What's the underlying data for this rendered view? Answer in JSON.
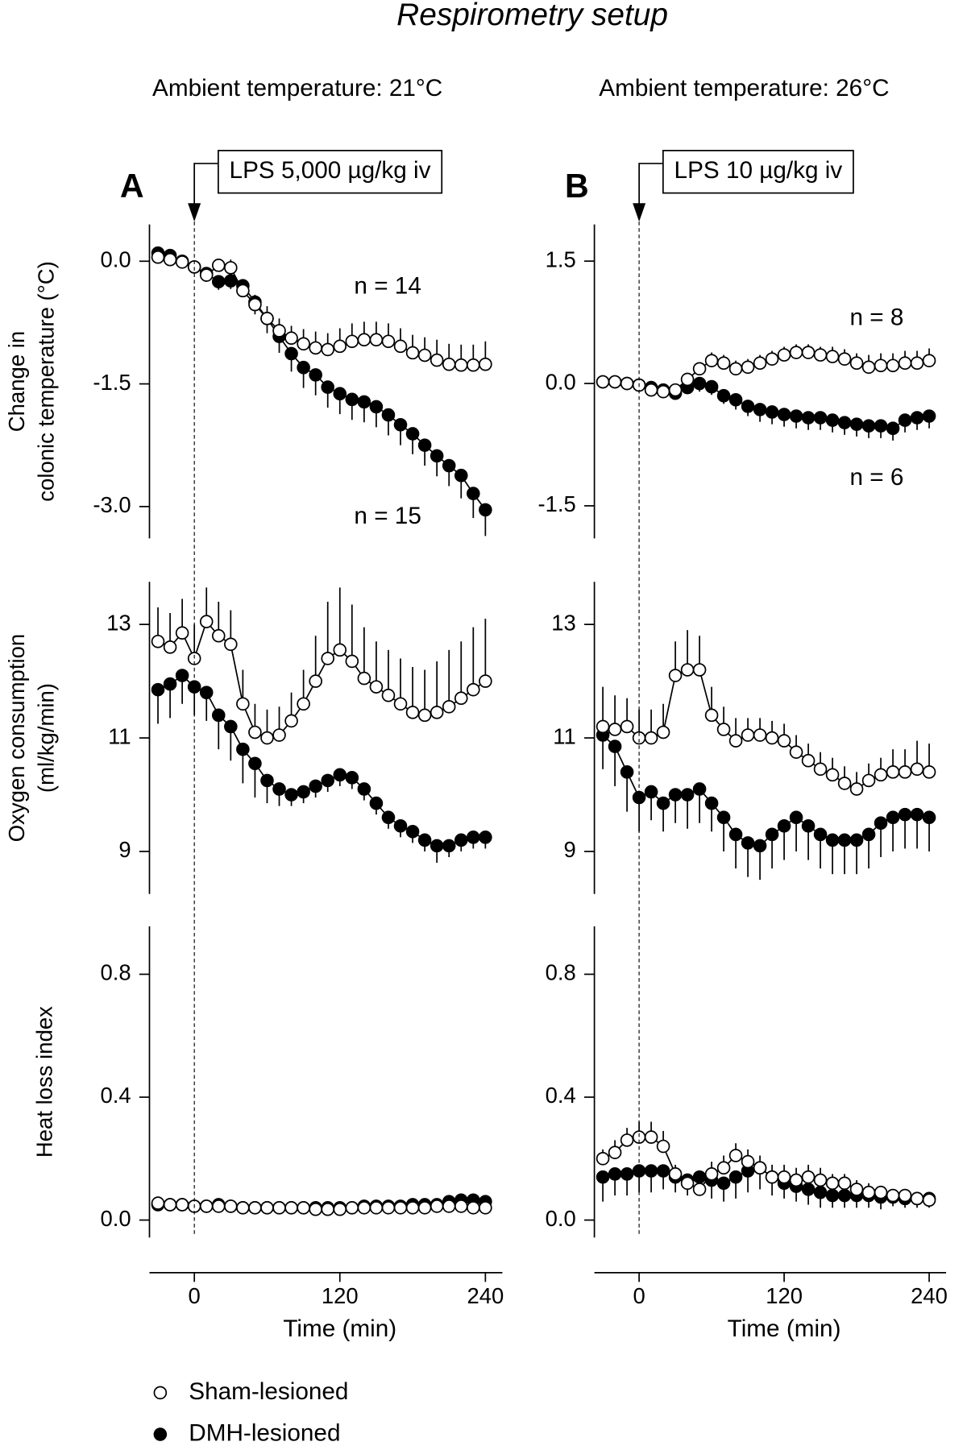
{
  "title": "Respirometry setup",
  "columns": [
    {
      "header": "Ambient temperature: 21°C",
      "letter": "A",
      "injection": "LPS 5,000 µg/kg iv"
    },
    {
      "header": "Ambient temperature: 26°C",
      "letter": "B",
      "injection": "LPS 10 µg/kg iv"
    }
  ],
  "legend": [
    {
      "label": "Sham-lesioned",
      "style": "open"
    },
    {
      "label": "DMH-lesioned",
      "style": "filled"
    }
  ],
  "chart_data": [
    {
      "type": "line",
      "ylabel": [
        "Change in",
        "colonic temperature (°C)"
      ],
      "annotations": [
        "n = 14",
        "n = 15"
      ],
      "x": [
        -30,
        -20,
        -10,
        0,
        10,
        20,
        30,
        40,
        50,
        60,
        70,
        80,
        90,
        100,
        110,
        120,
        130,
        140,
        150,
        160,
        170,
        180,
        190,
        200,
        210,
        220,
        230,
        240
      ],
      "xlim": [
        -37,
        254
      ],
      "ylim": [
        -3.39,
        0.45
      ],
      "yticks": [
        {
          "value": 0,
          "label": "0.0"
        },
        -1.5,
        {
          "value": -3,
          "label": "-3.0"
        }
      ],
      "series": [
        {
          "style": "open",
          "error_direction": "up",
          "values": [
            0.05,
            0.02,
            -0.01,
            -0.07,
            -0.17,
            -0.05,
            -0.08,
            -0.36,
            -0.53,
            -0.7,
            -0.85,
            -0.94,
            -1.01,
            -1.06,
            -1.08,
            -1.04,
            -0.98,
            -0.96,
            -0.96,
            -0.98,
            -1.04,
            -1.12,
            -1.15,
            -1.21,
            -1.26,
            -1.27,
            -1.27,
            -1.26
          ],
          "errors": [
            0.03,
            0.03,
            0.03,
            0.05,
            0.08,
            0.08,
            0.1,
            0.12,
            0.12,
            0.15,
            0.15,
            0.15,
            0.18,
            0.2,
            0.2,
            0.22,
            0.22,
            0.22,
            0.22,
            0.22,
            0.22,
            0.22,
            0.22,
            0.25,
            0.25,
            0.25,
            0.25,
            0.28
          ]
        },
        {
          "style": "filled",
          "error_direction": "down",
          "values": [
            0.1,
            0.07,
            0,
            -0.07,
            -0.15,
            -0.25,
            -0.24,
            -0.3,
            -0.5,
            -0.7,
            -0.92,
            -1.13,
            -1.3,
            -1.39,
            -1.54,
            -1.62,
            -1.69,
            -1.72,
            -1.78,
            -1.88,
            -2,
            -2.11,
            -2.25,
            -2.38,
            -2.5,
            -2.62,
            -2.84,
            -3.04
          ],
          "errors": [
            0.03,
            0.03,
            0.03,
            0.05,
            0.08,
            0.1,
            0.1,
            0.12,
            0.15,
            0.18,
            0.2,
            0.22,
            0.25,
            0.25,
            0.25,
            0.25,
            0.25,
            0.25,
            0.25,
            0.25,
            0.25,
            0.25,
            0.25,
            0.25,
            0.25,
            0.28,
            0.3,
            0.32
          ]
        }
      ]
    },
    {
      "type": "line",
      "annotations": [
        "n = 8",
        "n = 6"
      ],
      "x": [
        -30,
        -20,
        -10,
        0,
        10,
        20,
        30,
        40,
        50,
        60,
        70,
        80,
        90,
        100,
        110,
        120,
        130,
        140,
        150,
        160,
        170,
        180,
        190,
        200,
        210,
        220,
        230,
        240
      ],
      "xlim": [
        -37,
        254
      ],
      "ylim": [
        -1.9,
        1.95
      ],
      "yticks": [
        1.5,
        {
          "value": 0,
          "label": "0.0"
        },
        -1.5
      ],
      "series": [
        {
          "style": "open",
          "error_direction": "up",
          "values": [
            0.02,
            0.02,
            0,
            -0.02,
            -0.08,
            -0.1,
            -0.08,
            0.05,
            0.18,
            0.28,
            0.25,
            0.18,
            0.2,
            0.25,
            0.3,
            0.35,
            0.38,
            0.38,
            0.35,
            0.33,
            0.3,
            0.25,
            0.2,
            0.22,
            0.22,
            0.25,
            0.25,
            0.28
          ],
          "errors": [
            0.02,
            0.02,
            0.02,
            0.03,
            0.05,
            0.05,
            0.06,
            0.08,
            0.08,
            0.1,
            0.1,
            0.1,
            0.1,
            0.1,
            0.1,
            0.1,
            0.1,
            0.1,
            0.1,
            0.12,
            0.12,
            0.12,
            0.15,
            0.15,
            0.15,
            0.15,
            0.15,
            0.15
          ]
        },
        {
          "style": "filled",
          "error_direction": "down",
          "values": [
            0.02,
            0.02,
            0,
            -0.02,
            -0.05,
            -0.08,
            -0.12,
            -0.05,
            0,
            -0.04,
            -0.15,
            -0.2,
            -0.28,
            -0.32,
            -0.35,
            -0.38,
            -0.4,
            -0.42,
            -0.42,
            -0.45,
            -0.48,
            -0.5,
            -0.52,
            -0.52,
            -0.55,
            -0.45,
            -0.42,
            -0.4
          ],
          "errors": [
            0.02,
            0.02,
            0.02,
            0.03,
            0.05,
            0.05,
            0.08,
            0.08,
            0.1,
            0.1,
            0.1,
            0.12,
            0.12,
            0.15,
            0.15,
            0.15,
            0.15,
            0.15,
            0.15,
            0.15,
            0.15,
            0.15,
            0.15,
            0.15,
            0.15,
            0.15,
            0.15,
            0.15
          ]
        }
      ]
    },
    {
      "type": "line",
      "ylabel": [
        "Oxygen consumption",
        "(ml/kg/min)"
      ],
      "x": [
        -30,
        -20,
        -10,
        0,
        10,
        20,
        30,
        40,
        50,
        60,
        70,
        80,
        90,
        100,
        110,
        120,
        130,
        140,
        150,
        160,
        170,
        180,
        190,
        200,
        210,
        220,
        230,
        240
      ],
      "xlim": [
        -37,
        254
      ],
      "ylim": [
        8.25,
        13.75
      ],
      "yticks": [
        13,
        11,
        9
      ],
      "series": [
        {
          "style": "open",
          "error_direction": "up",
          "values": [
            12.7,
            12.6,
            12.85,
            12.4,
            13.05,
            12.8,
            12.65,
            11.6,
            11.1,
            11,
            11.05,
            11.3,
            11.6,
            12,
            12.4,
            12.55,
            12.35,
            12.05,
            11.9,
            11.75,
            11.6,
            11.45,
            11.4,
            11.45,
            11.55,
            11.7,
            11.85,
            12
          ],
          "errors": [
            0.6,
            0.6,
            0.6,
            0.6,
            0.6,
            0.6,
            0.6,
            0.6,
            0.5,
            0.5,
            0.5,
            0.5,
            0.6,
            0.8,
            1,
            1.1,
            1,
            0.9,
            0.8,
            0.8,
            0.8,
            0.8,
            0.8,
            0.9,
            1,
            1,
            1.1,
            1.1
          ]
        },
        {
          "style": "filled",
          "error_direction": "down",
          "values": [
            11.85,
            11.95,
            12.1,
            11.9,
            11.8,
            11.4,
            11.2,
            10.8,
            10.55,
            10.25,
            10.1,
            10,
            10.05,
            10.15,
            10.25,
            10.35,
            10.3,
            10.1,
            9.85,
            9.6,
            9.45,
            9.35,
            9.2,
            9.1,
            9.1,
            9.2,
            9.25,
            9.25
          ],
          "errors": [
            0.6,
            0.6,
            0.5,
            0.5,
            0.5,
            0.6,
            0.6,
            0.6,
            0.6,
            0.4,
            0.3,
            0.2,
            0.2,
            0.2,
            0.2,
            0.2,
            0.2,
            0.2,
            0.2,
            0.2,
            0.2,
            0.2,
            0.2,
            0.3,
            0.2,
            0.2,
            0.2,
            0.2
          ]
        }
      ]
    },
    {
      "type": "line",
      "x": [
        -30,
        -20,
        -10,
        0,
        10,
        20,
        30,
        40,
        50,
        60,
        70,
        80,
        90,
        100,
        110,
        120,
        130,
        140,
        150,
        160,
        170,
        180,
        190,
        200,
        210,
        220,
        230,
        240
      ],
      "xlim": [
        -37,
        254
      ],
      "ylim": [
        8.25,
        13.75
      ],
      "yticks": [
        13,
        11,
        9
      ],
      "series": [
        {
          "style": "open",
          "error_direction": "up",
          "values": [
            11.2,
            11.15,
            11.2,
            11,
            11,
            11.1,
            12.1,
            12.2,
            12.2,
            11.4,
            11.15,
            10.95,
            11.05,
            11.05,
            11,
            10.95,
            10.75,
            10.6,
            10.45,
            10.35,
            10.2,
            10.1,
            10.25,
            10.35,
            10.4,
            10.4,
            10.45,
            10.4
          ],
          "errors": [
            0.7,
            0.6,
            0.5,
            0.5,
            0.5,
            0.5,
            0.6,
            0.7,
            0.6,
            0.5,
            0.4,
            0.4,
            0.3,
            0.3,
            0.3,
            0.3,
            0.3,
            0.3,
            0.3,
            0.3,
            0.3,
            0.3,
            0.3,
            0.3,
            0.4,
            0.4,
            0.5,
            0.5
          ]
        },
        {
          "style": "filled",
          "error_direction": "down",
          "values": [
            11.05,
            10.85,
            10.4,
            9.95,
            10.05,
            9.85,
            10,
            10,
            10.1,
            9.85,
            9.6,
            9.3,
            9.15,
            9.1,
            9.3,
            9.45,
            9.6,
            9.45,
            9.3,
            9.2,
            9.2,
            9.2,
            9.3,
            9.5,
            9.6,
            9.65,
            9.65,
            9.6
          ],
          "errors": [
            0.6,
            0.7,
            0.7,
            0.6,
            0.5,
            0.5,
            0.5,
            0.6,
            0.6,
            0.5,
            0.6,
            0.6,
            0.6,
            0.6,
            0.6,
            0.6,
            0.6,
            0.6,
            0.6,
            0.6,
            0.6,
            0.6,
            0.6,
            0.6,
            0.6,
            0.6,
            0.6,
            0.6
          ]
        }
      ]
    },
    {
      "type": "line",
      "ylabel": [
        "Heat loss index"
      ],
      "xlabel": "Time (min)",
      "x": [
        -30,
        -20,
        -10,
        0,
        10,
        20,
        30,
        40,
        50,
        60,
        70,
        80,
        90,
        100,
        110,
        120,
        130,
        140,
        150,
        160,
        170,
        180,
        190,
        200,
        210,
        220,
        230,
        240
      ],
      "xlim": [
        -37,
        254
      ],
      "xticks": [
        0,
        120,
        240
      ],
      "ylim": [
        -0.057,
        0.956
      ],
      "yticks": [
        0.8,
        0.4,
        {
          "value": 0,
          "label": "0.0"
        }
      ],
      "series": [
        {
          "style": "open",
          "error_direction": "up",
          "values": [
            0.055,
            0.05,
            0.05,
            0.045,
            0.045,
            0.045,
            0.045,
            0.04,
            0.04,
            0.04,
            0.04,
            0.04,
            0.04,
            0.035,
            0.035,
            0.035,
            0.04,
            0.04,
            0.04,
            0.04,
            0.04,
            0.04,
            0.04,
            0.045,
            0.045,
            0.045,
            0.04,
            0.04
          ],
          "errors": [
            0.01,
            0.01,
            0.01,
            0.01,
            0.01,
            0.01,
            0.01,
            0.01,
            0.01,
            0.01,
            0.01,
            0.01,
            0.01,
            0.01,
            0.01,
            0.01,
            0.01,
            0.01,
            0.01,
            0.01,
            0.01,
            0.01,
            0.01,
            0.01,
            0.01,
            0.01,
            0.01,
            0.01
          ]
        },
        {
          "style": "filled",
          "error_direction": "down",
          "values": [
            0.05,
            0.05,
            0.05,
            0.045,
            0.045,
            0.05,
            0.045,
            0.04,
            0.04,
            0.04,
            0.04,
            0.04,
            0.04,
            0.04,
            0.04,
            0.04,
            0.04,
            0.045,
            0.045,
            0.045,
            0.045,
            0.05,
            0.05,
            0.05,
            0.06,
            0.065,
            0.065,
            0.06
          ],
          "errors": [
            0.01,
            0.01,
            0.01,
            0.01,
            0.01,
            0.01,
            0.01,
            0.01,
            0.01,
            0.01,
            0.01,
            0.01,
            0.01,
            0.01,
            0.01,
            0.01,
            0.01,
            0.01,
            0.01,
            0.01,
            0.01,
            0.01,
            0.01,
            0.01,
            0.01,
            0.01,
            0.01,
            0.01
          ]
        }
      ]
    },
    {
      "type": "line",
      "xlabel": "Time (min)",
      "x": [
        -30,
        -20,
        -10,
        0,
        10,
        20,
        30,
        40,
        50,
        60,
        70,
        80,
        90,
        100,
        110,
        120,
        130,
        140,
        150,
        160,
        170,
        180,
        190,
        200,
        210,
        220,
        230,
        240
      ],
      "xlim": [
        -37,
        254
      ],
      "xticks": [
        0,
        120,
        240
      ],
      "ylim": [
        -0.057,
        0.956
      ],
      "yticks": [
        0.8,
        0.4,
        {
          "value": 0,
          "label": "0.0"
        }
      ],
      "series": [
        {
          "style": "open",
          "error_direction": "up",
          "values": [
            0.2,
            0.22,
            0.26,
            0.27,
            0.27,
            0.24,
            0.15,
            0.12,
            0.1,
            0.15,
            0.17,
            0.21,
            0.19,
            0.17,
            0.14,
            0.14,
            0.13,
            0.14,
            0.13,
            0.12,
            0.12,
            0.1,
            0.09,
            0.09,
            0.08,
            0.08,
            0.07,
            0.065
          ],
          "errors": [
            0.03,
            0.04,
            0.04,
            0.05,
            0.05,
            0.05,
            0.03,
            0.03,
            0.03,
            0.04,
            0.04,
            0.04,
            0.04,
            0.04,
            0.04,
            0.04,
            0.04,
            0.04,
            0.04,
            0.03,
            0.03,
            0.03,
            0.03,
            0.02,
            0.02,
            0.02,
            0.02,
            0.01
          ]
        },
        {
          "style": "filled",
          "error_direction": "down",
          "values": [
            0.14,
            0.15,
            0.15,
            0.16,
            0.16,
            0.16,
            0.14,
            0.13,
            0.14,
            0.13,
            0.12,
            0.14,
            0.16,
            0.17,
            0.14,
            0.12,
            0.11,
            0.1,
            0.09,
            0.08,
            0.08,
            0.08,
            0.08,
            0.075,
            0.075,
            0.07,
            0.07,
            0.07
          ],
          "errors": [
            0.08,
            0.07,
            0.07,
            0.07,
            0.07,
            0.06,
            0.05,
            0.05,
            0.06,
            0.06,
            0.06,
            0.07,
            0.07,
            0.07,
            0.06,
            0.05,
            0.05,
            0.05,
            0.05,
            0.04,
            0.04,
            0.04,
            0.04,
            0.04,
            0.03,
            0.03,
            0.03,
            0.03
          ]
        }
      ]
    }
  ]
}
